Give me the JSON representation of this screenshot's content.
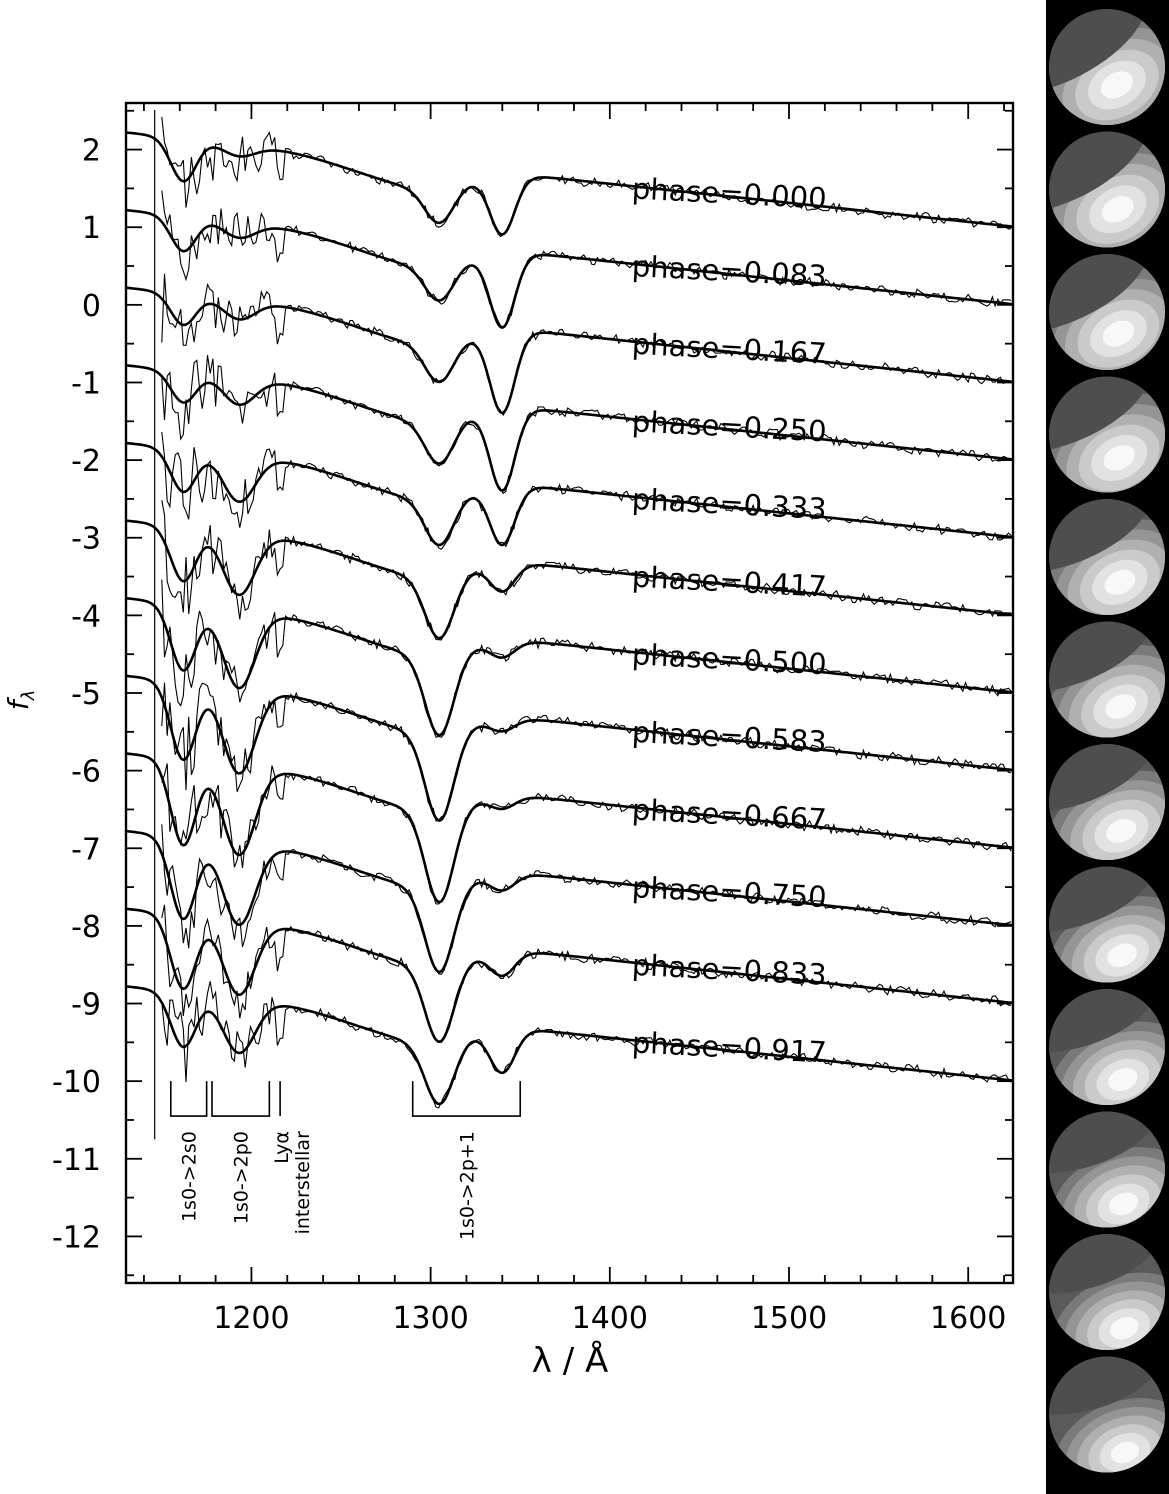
{
  "chart_data": {
    "type": "line",
    "xlabel": "λ / Å",
    "ylabel": "f",
    "ylabel_subscript": "λ",
    "xlim": [
      1130,
      1625
    ],
    "ylim": [
      -12.6,
      2.6
    ],
    "x_ticks": [
      1200,
      1300,
      1400,
      1500,
      1600
    ],
    "x_tick_labels": [
      "1200",
      "1300",
      "1400",
      "1500",
      "1600"
    ],
    "y_ticks": [
      2,
      1,
      0,
      -1,
      -2,
      -3,
      -4,
      -5,
      -6,
      -7,
      -8,
      -9,
      -10,
      -11,
      -12
    ],
    "y_tick_labels": [
      "2",
      "1",
      "0",
      "-1",
      "-2",
      "-3",
      "-4",
      "-5",
      "-6",
      "-7",
      "-8",
      "-9",
      "-10",
      "-11",
      "-12"
    ],
    "grid": false,
    "series_offset_step": -1.0,
    "series": [
      {
        "name": "phase=0.000",
        "label": "phase=0.000",
        "offset": 0,
        "d1": 0.55,
        "d2": 0.15,
        "d3": 0.45,
        "d4": 0.75
      },
      {
        "name": "phase=0.083",
        "label": "phase=0.083",
        "offset": -1,
        "d1": 0.45,
        "d2": 0.2,
        "d3": 0.45,
        "d4": 0.95
      },
      {
        "name": "phase=0.167",
        "label": "phase=0.167",
        "offset": -2,
        "d1": 0.4,
        "d2": 0.25,
        "d3": 0.5,
        "d4": 1.05
      },
      {
        "name": "phase=0.250",
        "label": "phase=0.250",
        "offset": -3,
        "d1": 0.4,
        "d2": 0.35,
        "d3": 0.55,
        "d4": 1.05
      },
      {
        "name": "phase=0.333",
        "label": "phase=0.333",
        "offset": -4,
        "d1": 0.55,
        "d2": 0.6,
        "d3": 0.6,
        "d4": 0.75
      },
      {
        "name": "phase=0.417",
        "label": "phase=0.417",
        "offset": -5,
        "d1": 0.7,
        "d2": 0.8,
        "d3": 0.8,
        "d4": 0.35
      },
      {
        "name": "phase=0.500",
        "label": "phase=0.500",
        "offset": -6,
        "d1": 0.85,
        "d2": 1.0,
        "d3": 1.05,
        "d4": 0.2
      },
      {
        "name": "phase=0.583",
        "label": "phase=0.583",
        "offset": -7,
        "d1": 1.0,
        "d2": 1.1,
        "d3": 1.15,
        "d4": 0.15
      },
      {
        "name": "phase=0.667",
        "label": "phase=0.667",
        "offset": -8,
        "d1": 1.1,
        "d2": 1.15,
        "d3": 1.2,
        "d4": 0.15
      },
      {
        "name": "phase=0.750",
        "label": "phase=0.750",
        "offset": -9,
        "d1": 1.05,
        "d2": 1.05,
        "d3": 1.1,
        "d4": 0.2
      },
      {
        "name": "phase=0.833",
        "label": "phase=0.833",
        "offset": -10,
        "d1": 0.95,
        "d2": 0.95,
        "d3": 1.0,
        "d4": 0.3
      },
      {
        "name": "phase=0.917",
        "label": "phase=0.917",
        "offset": -11,
        "d1": 0.7,
        "d2": 0.7,
        "d3": 0.8,
        "d4": 0.55
      }
    ],
    "annotations": [
      {
        "label": "1s0->2s0",
        "x_start": 1155,
        "x_end": 1175
      },
      {
        "label": "1s0->2p0",
        "x_start": 1178,
        "x_end": 1210
      },
      {
        "label": "Lyα",
        "label2": "interstellar",
        "x": 1216
      },
      {
        "label": "1s0->2p+1",
        "x_start": 1290,
        "x_end": 1350
      }
    ]
  },
  "side_panel": {
    "background": "#000000",
    "sphere_count": 12
  }
}
